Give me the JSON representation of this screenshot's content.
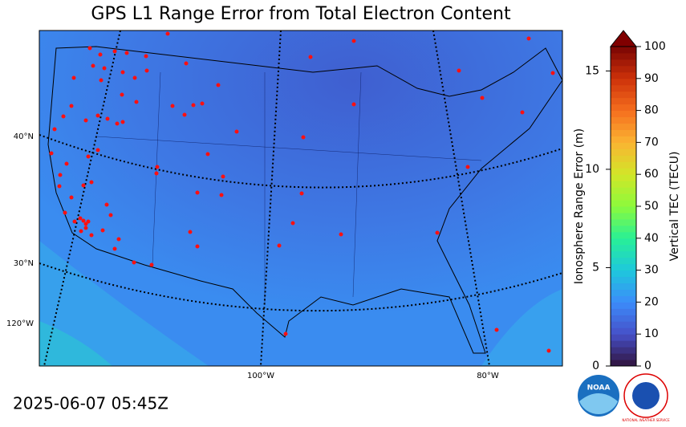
{
  "title": "GPS L1 Range Error from Total Electron Content",
  "timestamp": "2025-06-07 05:45Z",
  "map": {
    "graticule_labels": {
      "lat_40": "40°N",
      "lat_30": "30°N",
      "lon_120": "120°W",
      "lon_100": "100°W",
      "lon_80": "80°W"
    }
  },
  "colorbar": {
    "left_label": "Ionosphere Range Error (m)",
    "left_lim": [
      0,
      16.24
    ],
    "left_ticks": [
      0,
      5,
      10,
      15
    ],
    "right_label": "Vertical TEC (TECU)",
    "right_lim": [
      0,
      100
    ],
    "right_ticks": [
      0,
      10,
      20,
      30,
      40,
      50,
      60,
      70,
      80,
      90,
      100
    ]
  },
  "logos": {
    "noaa": "NOAA",
    "nws": "NATIONAL WEATHER SERVICE"
  }
}
